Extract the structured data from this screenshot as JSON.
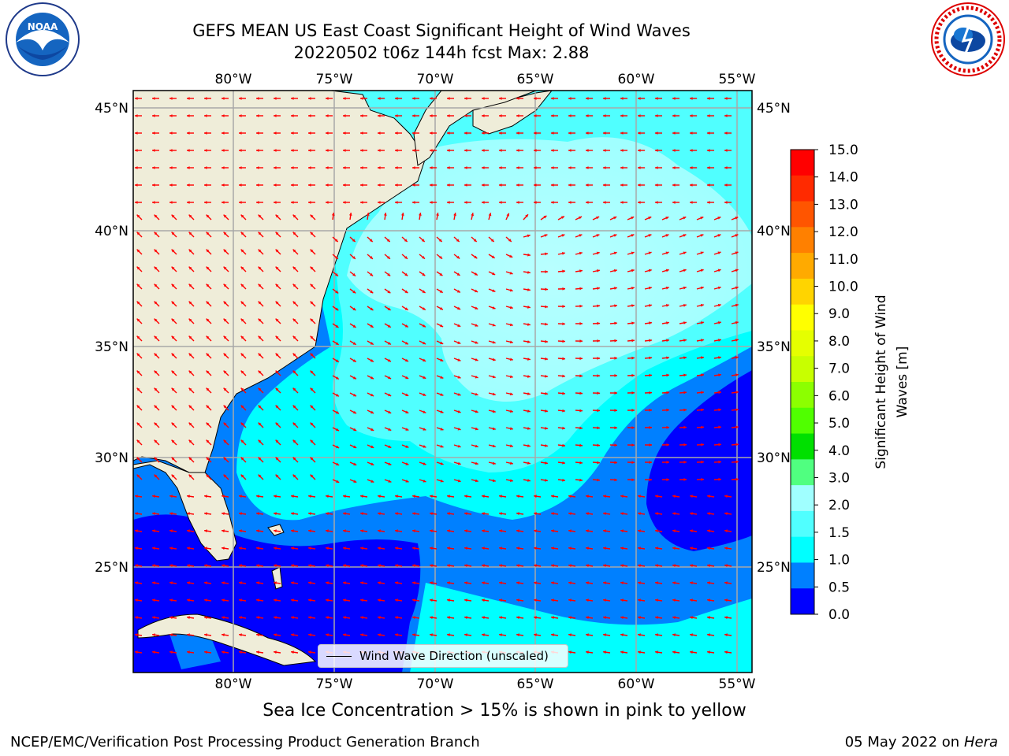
{
  "header": {
    "title_line1": "GEFS MEAN US East Coast Significant Height of Wind Waves",
    "title_line2": "20220502 t06z 144h fcst   Max: 2.88"
  },
  "logos": {
    "left_text": "NOAA",
    "right_text": "NATIONAL WEATHER SERVICE"
  },
  "map": {
    "lon_labels": [
      "80°W",
      "75°W",
      "70°W",
      "65°W",
      "60°W",
      "55°W"
    ],
    "lat_labels": [
      "45°N",
      "40°N",
      "35°N",
      "30°N",
      "25°N"
    ],
    "legend_label": "Wind Wave Direction (unscaled)",
    "land_color": "#efedd9",
    "arrow_color": "#ff0000"
  },
  "colorbar": {
    "label_line1": "Significant Height of Wind",
    "label_line2": "Waves [m]",
    "ticks": [
      "15.0",
      "14.0",
      "13.0",
      "12.0",
      "11.0",
      "10.0",
      "9.0",
      "8.0",
      "7.0",
      "6.0",
      "5.0",
      "4.0",
      "3.0",
      "2.0",
      "1.5",
      "1.0",
      "0.5",
      "0.0"
    ],
    "colors_top_to_bottom": [
      "#ff0000",
      "#ff2a00",
      "#ff5500",
      "#ff8000",
      "#ffaa00",
      "#ffd400",
      "#ffff00",
      "#e5ff00",
      "#c8ff00",
      "#8cff00",
      "#50ff00",
      "#00e000",
      "#50ff80",
      "#a0ffff",
      "#50ffff",
      "#00ffff",
      "#0080ff",
      "#0000ff"
    ]
  },
  "notes": {
    "sea_ice": "Sea Ice Concentration > 15% is shown in pink to yellow",
    "footer_left": "NCEP/EMC/Verification Post Processing Product Generation Branch",
    "footer_date": "05 May 2022 on",
    "footer_host": "Hera"
  }
}
